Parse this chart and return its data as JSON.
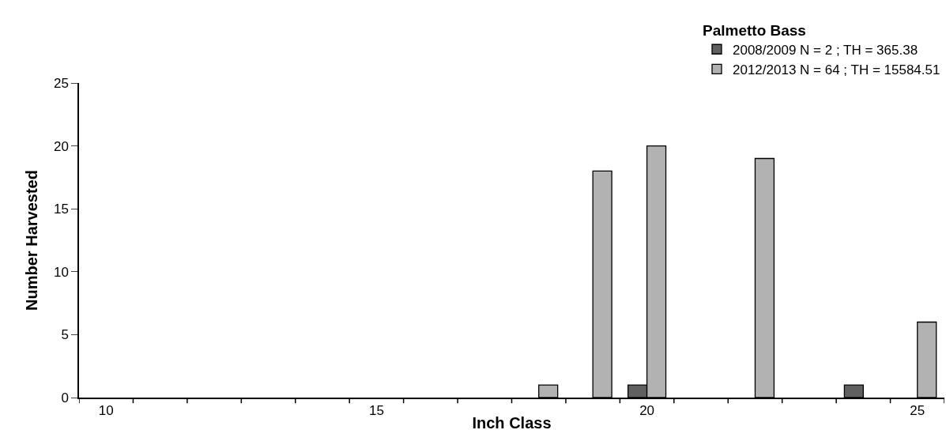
{
  "chart_data": {
    "type": "bar",
    "legend_title": "Palmetto Bass",
    "xlabel": "Inch Class",
    "ylabel": "Number Harvested",
    "categories": [
      "10",
      null,
      null,
      null,
      null,
      "15",
      null,
      null,
      null,
      null,
      "20",
      null,
      null,
      null,
      null,
      "25"
    ],
    "series": [
      {
        "name": "2008/2009 N = 2 ; TH = 365.38",
        "color": "#606060",
        "values": [
          null,
          null,
          null,
          null,
          null,
          null,
          null,
          null,
          null,
          null,
          1,
          null,
          null,
          null,
          1,
          null
        ]
      },
      {
        "name": "2012/2013 N = 64 ; TH = 15584.51",
        "color": "#b2b2b2",
        "values": [
          null,
          null,
          null,
          null,
          null,
          null,
          null,
          null,
          1,
          18,
          20,
          null,
          19,
          null,
          null,
          6
        ]
      }
    ],
    "ylim": [
      0,
      25
    ],
    "yticks": [
      0,
      5,
      10,
      15,
      20,
      25
    ],
    "legend": "top right"
  }
}
